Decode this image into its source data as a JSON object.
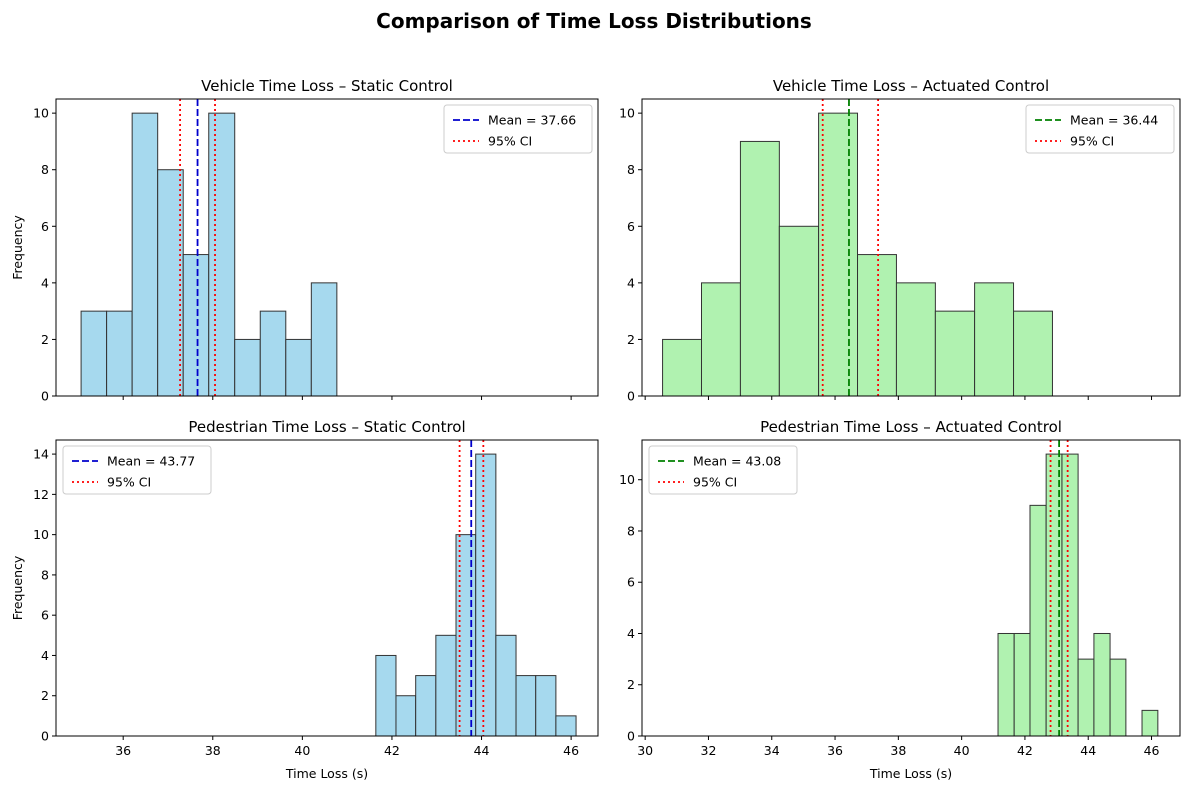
{
  "figure": {
    "title": "Comparison of Time Loss Distributions"
  },
  "chart_data": [
    {
      "type": "bar",
      "title": "Vehicle Time Loss – Static Control",
      "xlabel": "",
      "ylabel": "Frequency",
      "xlim": [
        34.5,
        46.6
      ],
      "ylim": [
        0,
        10.5
      ],
      "xticks": [
        36,
        38,
        40,
        42,
        44,
        46
      ],
      "show_xtick_labels": false,
      "yticks": [
        0,
        2,
        4,
        6,
        8,
        10
      ],
      "bar_color": "#a6d9ee",
      "bins": [
        {
          "x0": 35.06,
          "x1": 35.63,
          "count": 3
        },
        {
          "x0": 35.63,
          "x1": 36.2,
          "count": 3
        },
        {
          "x0": 36.2,
          "x1": 36.77,
          "count": 10
        },
        {
          "x0": 36.77,
          "x1": 37.34,
          "count": 8
        },
        {
          "x0": 37.34,
          "x1": 37.91,
          "count": 5
        },
        {
          "x0": 37.91,
          "x1": 38.49,
          "count": 10
        },
        {
          "x0": 38.49,
          "x1": 39.06,
          "count": 2
        },
        {
          "x0": 39.06,
          "x1": 39.63,
          "count": 3
        },
        {
          "x0": 39.63,
          "x1": 40.2,
          "count": 2
        },
        {
          "x0": 40.2,
          "x1": 40.77,
          "count": 4
        }
      ],
      "mean": 37.66,
      "ci": [
        37.27,
        38.05
      ],
      "mean_color": "#0000cc",
      "ci_color": "#ff0000",
      "legend_position": "top-right",
      "legend": {
        "mean_label": "Mean = 37.66",
        "ci_label": "95% CI"
      }
    },
    {
      "type": "bar",
      "title": "Vehicle Time Loss – Actuated Control",
      "xlabel": "",
      "ylabel": "",
      "xlim": [
        29.9,
        46.9
      ],
      "ylim": [
        0,
        10.5
      ],
      "xticks": [
        30,
        32,
        34,
        36,
        38,
        40,
        42,
        44,
        46
      ],
      "show_xtick_labels": false,
      "yticks": [
        0,
        2,
        4,
        6,
        8,
        10
      ],
      "bar_color": "#b0f2b0",
      "bins": [
        {
          "x0": 30.55,
          "x1": 31.78,
          "count": 2
        },
        {
          "x0": 31.78,
          "x1": 33.01,
          "count": 4
        },
        {
          "x0": 33.01,
          "x1": 34.24,
          "count": 9
        },
        {
          "x0": 34.24,
          "x1": 35.48,
          "count": 6
        },
        {
          "x0": 35.48,
          "x1": 36.71,
          "count": 10
        },
        {
          "x0": 36.71,
          "x1": 37.94,
          "count": 5
        },
        {
          "x0": 37.94,
          "x1": 39.17,
          "count": 4
        },
        {
          "x0": 39.17,
          "x1": 40.41,
          "count": 3
        },
        {
          "x0": 40.41,
          "x1": 41.64,
          "count": 4
        },
        {
          "x0": 41.64,
          "x1": 42.87,
          "count": 3
        }
      ],
      "mean": 36.44,
      "ci": [
        35.61,
        37.36
      ],
      "mean_color": "#008000",
      "ci_color": "#ff0000",
      "legend_position": "top-right",
      "legend": {
        "mean_label": "Mean = 36.44",
        "ci_label": "95% CI"
      }
    },
    {
      "type": "bar",
      "title": "Pedestrian Time Loss – Static Control",
      "xlabel": "Time Loss (s)",
      "ylabel": "Frequency",
      "xlim": [
        34.5,
        46.6
      ],
      "ylim": [
        0,
        14.7
      ],
      "xticks": [
        36,
        38,
        40,
        42,
        44,
        46
      ],
      "show_xtick_labels": true,
      "yticks": [
        0,
        2,
        4,
        6,
        8,
        10,
        12,
        14
      ],
      "bar_color": "#a6d9ee",
      "bins": [
        {
          "x0": 41.64,
          "x1": 42.09,
          "count": 4
        },
        {
          "x0": 42.09,
          "x1": 42.53,
          "count": 2
        },
        {
          "x0": 42.53,
          "x1": 42.98,
          "count": 3
        },
        {
          "x0": 42.98,
          "x1": 43.43,
          "count": 5
        },
        {
          "x0": 43.43,
          "x1": 43.87,
          "count": 10
        },
        {
          "x0": 43.87,
          "x1": 44.32,
          "count": 14
        },
        {
          "x0": 44.32,
          "x1": 44.77,
          "count": 5
        },
        {
          "x0": 44.77,
          "x1": 45.21,
          "count": 3
        },
        {
          "x0": 45.21,
          "x1": 45.66,
          "count": 3
        },
        {
          "x0": 45.66,
          "x1": 46.11,
          "count": 1
        }
      ],
      "mean": 43.77,
      "ci": [
        43.51,
        44.04
      ],
      "mean_color": "#0000cc",
      "ci_color": "#ff0000",
      "legend_position": "top-left",
      "legend": {
        "mean_label": "Mean = 43.77",
        "ci_label": "95% CI"
      }
    },
    {
      "type": "bar",
      "title": "Pedestrian Time Loss – Actuated Control",
      "xlabel": "Time Loss (s)",
      "ylabel": "",
      "xlim": [
        29.9,
        46.9
      ],
      "ylim": [
        0,
        11.55
      ],
      "xticks": [
        30,
        32,
        34,
        36,
        38,
        40,
        42,
        44,
        46
      ],
      "show_xtick_labels": true,
      "yticks": [
        0,
        2,
        4,
        6,
        8,
        10
      ],
      "bar_color": "#b0f2b0",
      "bins": [
        {
          "x0": 41.15,
          "x1": 41.66,
          "count": 4
        },
        {
          "x0": 41.66,
          "x1": 42.16,
          "count": 4
        },
        {
          "x0": 42.16,
          "x1": 42.67,
          "count": 9
        },
        {
          "x0": 42.67,
          "x1": 43.17,
          "count": 11
        },
        {
          "x0": 43.17,
          "x1": 43.68,
          "count": 11
        },
        {
          "x0": 43.68,
          "x1": 44.18,
          "count": 3
        },
        {
          "x0": 44.18,
          "x1": 44.69,
          "count": 4
        },
        {
          "x0": 44.69,
          "x1": 45.19,
          "count": 3
        },
        {
          "x0": 45.19,
          "x1": 45.7,
          "count": 0
        },
        {
          "x0": 45.7,
          "x1": 46.2,
          "count": 1
        }
      ],
      "mean": 43.08,
      "ci": [
        42.81,
        43.35
      ],
      "mean_color": "#008000",
      "ci_color": "#ff0000",
      "legend_position": "top-left",
      "legend": {
        "mean_label": "Mean = 43.08",
        "ci_label": "95% CI"
      }
    }
  ]
}
